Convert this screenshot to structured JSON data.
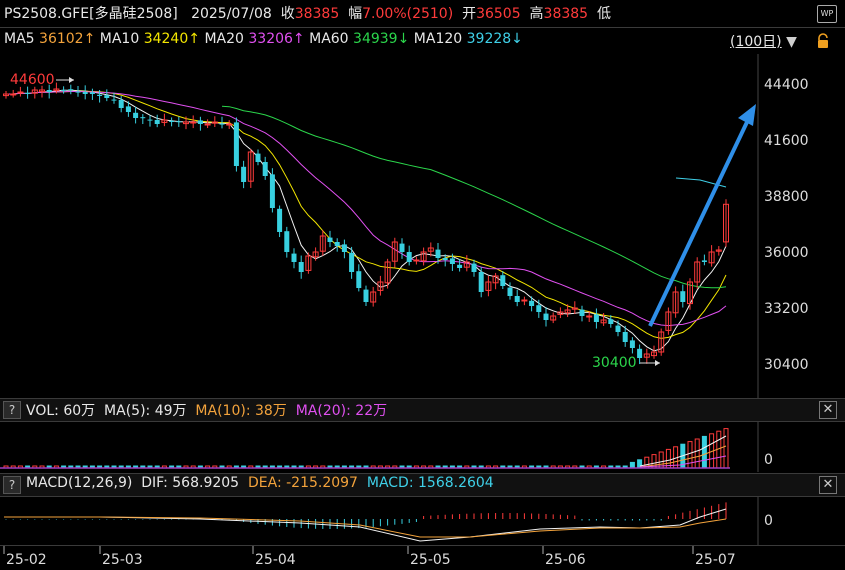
{
  "header": {
    "symbol": "PS2508.GFE[多晶硅2508]",
    "date": "2025/07/08",
    "close_label": "收",
    "close_value": "38385",
    "change_label": "幅",
    "change_value": "7.00%(2510)",
    "open_label": "开",
    "open_value": "36505",
    "high_label": "高",
    "high_value": "38385",
    "low_label": "低",
    "wp_label": "WP"
  },
  "ma_bar": {
    "ma5_label": "MA5",
    "ma5_value": "36102↑",
    "ma10_label": "MA10",
    "ma10_value": "34240↑",
    "ma20_label": "MA20",
    "ma20_value": "33206↑",
    "ma60_label": "MA60",
    "ma60_value": "34939↓",
    "ma120_label": "MA120",
    "ma120_value": "39228↓",
    "period_label": "(100日)"
  },
  "price_axis": [
    "44400",
    "41600",
    "38800",
    "36000",
    "33200",
    "30400"
  ],
  "annotations": {
    "high_marker": "44600",
    "low_marker": "30400"
  },
  "vol_panel": {
    "q": "?",
    "vol_label": "VOL: 60万",
    "ma5_label": "MA(5): 49万",
    "ma10_label": "MA(10): 38万",
    "ma20_label": "MA(20): 22万",
    "axis_zero": "0",
    "close": "✕"
  },
  "macd_panel": {
    "q": "?",
    "macd_params": "MACD(12,26,9)",
    "dif_label": "DIF: 568.9205",
    "dea_label": "DEA: -215.2097",
    "macd_label": "MACD: 1568.2604",
    "axis_zero": "0",
    "close": "✕"
  },
  "time_axis": [
    "25-02",
    "25-03",
    "25-04",
    "25-05",
    "25-06",
    "25-07"
  ],
  "colors": {
    "up": "#ff3b3b",
    "down": "#38d0e0",
    "ma5": "#f2f2f2",
    "ma10": "#f2e500",
    "ma20": "#e050f0",
    "ma60": "#2bd54b",
    "ma120": "#3fd0e8",
    "arrow": "#2f8fe8"
  },
  "chart_data": {
    "type": "candlestick",
    "y_axis_ticks": [
      44400,
      41600,
      38800,
      36000,
      33200,
      30400
    ],
    "period_high": 44600,
    "period_low": 30400,
    "last": {
      "date": "2025/07/08",
      "open": 36505,
      "high": 38385,
      "close": 38385,
      "change": 2510,
      "change_pct": 7.0
    },
    "closes": [
      43900,
      43900,
      44000,
      43900,
      44100,
      44100,
      44000,
      44150,
      44100,
      44100,
      44000,
      43900,
      43900,
      43800,
      43700,
      43600,
      43200,
      43000,
      42700,
      42700,
      42600,
      42400,
      42600,
      42500,
      42500,
      42500,
      42500,
      42400,
      42400,
      42500,
      42400,
      42400,
      40300,
      39500,
      41000,
      40500,
      39800,
      38200,
      37000,
      36000,
      35500,
      35000,
      35800,
      36000,
      36800,
      36500,
      36300,
      36000,
      35000,
      34200,
      33500,
      34000,
      34500,
      35500,
      36500,
      36000,
      35500,
      35600,
      36000,
      36200,
      35700,
      35600,
      35400,
      35200,
      35500,
      35000,
      34000,
      34500,
      34800,
      34300,
      33800,
      33500,
      33600,
      33300,
      33000,
      32600,
      32800,
      33000,
      33100,
      33200,
      32800,
      32800,
      32500,
      32600,
      32400,
      32000,
      31500,
      31200,
      30700,
      30900,
      31000,
      32000,
      33000,
      34000,
      33500,
      34500,
      35500,
      35500,
      36000,
      36100,
      38385
    ],
    "ma_series": [
      "MA5",
      "MA10",
      "MA20",
      "MA60",
      "MA120"
    ]
  }
}
